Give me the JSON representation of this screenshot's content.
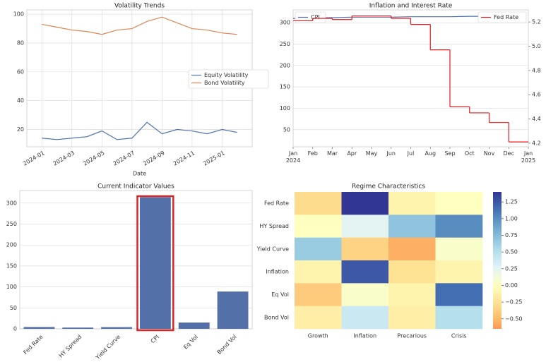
{
  "chart_data": [
    {
      "type": "date_line",
      "title": "Volatility Trends",
      "xlabel": "Date",
      "x": [
        "2024-01",
        "2024-02",
        "2024-03",
        "2024-04",
        "2024-05",
        "2024-06",
        "2024-07",
        "2024-08",
        "2024-09",
        "2024-10",
        "2024-11",
        "2024-12",
        "2025-01",
        "2025-02"
      ],
      "xlim": [
        "2023-12",
        "2025-03"
      ],
      "xticks": [
        "2024-01",
        "2024-03",
        "2024-05",
        "2024-07",
        "2024-09",
        "2024-11",
        "2025-01"
      ],
      "ylim": [
        8,
        103
      ],
      "yticks": [
        20,
        40,
        60,
        80,
        100
      ],
      "grid": true,
      "legend": "center right",
      "series": [
        {
          "name": "Equity Volatility",
          "color": "#4c72b0",
          "values": [
            14,
            13,
            14,
            15,
            19,
            13,
            14,
            25,
            17,
            20,
            19,
            17,
            20,
            18
          ]
        },
        {
          "name": "Bond Volatility",
          "color": "#dd8452",
          "values": [
            93,
            91,
            89,
            88,
            86,
            89,
            90,
            95,
            98,
            94,
            90,
            89,
            87,
            86
          ]
        }
      ]
    },
    {
      "type": "dual_line",
      "title": "Inflation and Interest Rate",
      "categories": [
        "Jan\n2024",
        "Feb",
        "Mar",
        "Apr",
        "May",
        "Jun",
        "Jul",
        "Aug",
        "Sep",
        "Oct",
        "Nov",
        "Dec",
        "Jan\n2025"
      ],
      "ylim": [
        10,
        330
      ],
      "yticks": [
        50,
        100,
        150,
        200,
        250,
        300
      ],
      "y2lim": [
        4.17,
        5.3
      ],
      "y2ticks": [
        4.2,
        4.4,
        4.6,
        4.8,
        {
          "value": 5.0,
          "label": "5.0"
        },
        5.2
      ],
      "grid": true,
      "series": [
        {
          "name": "CPI",
          "color": "#4c72b0",
          "legend": "upper left",
          "values": [
            310,
            311,
            312,
            313,
            313,
            313,
            314,
            314,
            314,
            315,
            315,
            null,
            null
          ]
        },
        {
          "name": "Fed Rate",
          "color": "#e41a1c",
          "axis": "y2",
          "step": true,
          "legend": "upper right",
          "values": [
            5.21,
            5.23,
            5.22,
            5.25,
            5.25,
            5.23,
            5.18,
            4.97,
            4.5,
            4.45,
            4.37,
            4.21,
            4.21
          ]
        }
      ]
    },
    {
      "type": "bar",
      "title": "Current Indicator Values",
      "categories": [
        "Fed Rate",
        "HY Spread",
        "Yield Curve",
        "CPI",
        "Eq Vol",
        "Bond Vol"
      ],
      "values": [
        4.3,
        3.0,
        4.0,
        314,
        15,
        89
      ],
      "color": "#5470a8",
      "highlight": "CPI",
      "highlight_color": "#d62728",
      "ylim": [
        0,
        330
      ],
      "yticks": [
        0,
        50,
        100,
        150,
        200,
        250,
        300
      ],
      "grid": true
    },
    {
      "type": "heatmap",
      "title": "Regime Characteristics",
      "rows": [
        "Fed Rate",
        "HY Spread",
        "Yield Curve",
        "Inflation",
        "Eq Vol",
        "Bond Vol"
      ],
      "columns": [
        "Growth",
        "Inflation",
        "Precarious",
        "Crisis"
      ],
      "values": [
        [
          -0.3,
          1.4,
          -0.1,
          0.0
        ],
        [
          0.0,
          0.25,
          0.7,
          1.0
        ],
        [
          0.65,
          -0.35,
          -0.55,
          0.05
        ],
        [
          -0.1,
          1.25,
          -0.25,
          -0.1
        ],
        [
          -0.4,
          0.05,
          -0.1,
          1.15
        ],
        [
          -0.15,
          0.4,
          -0.15,
          0.5
        ]
      ],
      "clim": [
        -0.65,
        1.4
      ],
      "cticks": [
        {
          "value": -0.5,
          "label": "−0.50"
        },
        {
          "value": -0.25,
          "label": "−0.25"
        },
        {
          "value": 0,
          "label": "0.00"
        },
        {
          "value": 0.25,
          "label": "0.25"
        },
        {
          "value": 0.5,
          "label": "0.50"
        },
        {
          "value": 0.75,
          "label": "0.75"
        },
        {
          "value": 1,
          "label": "1.00"
        },
        1.25
      ],
      "colormap": [
        "#a50026",
        "#d73027",
        "#f46d43",
        "#fdae61",
        "#fee090",
        "#ffffbf",
        "#e0f3f8",
        "#abd9e9",
        "#74add1",
        "#4575b4",
        "#313695"
      ]
    }
  ]
}
